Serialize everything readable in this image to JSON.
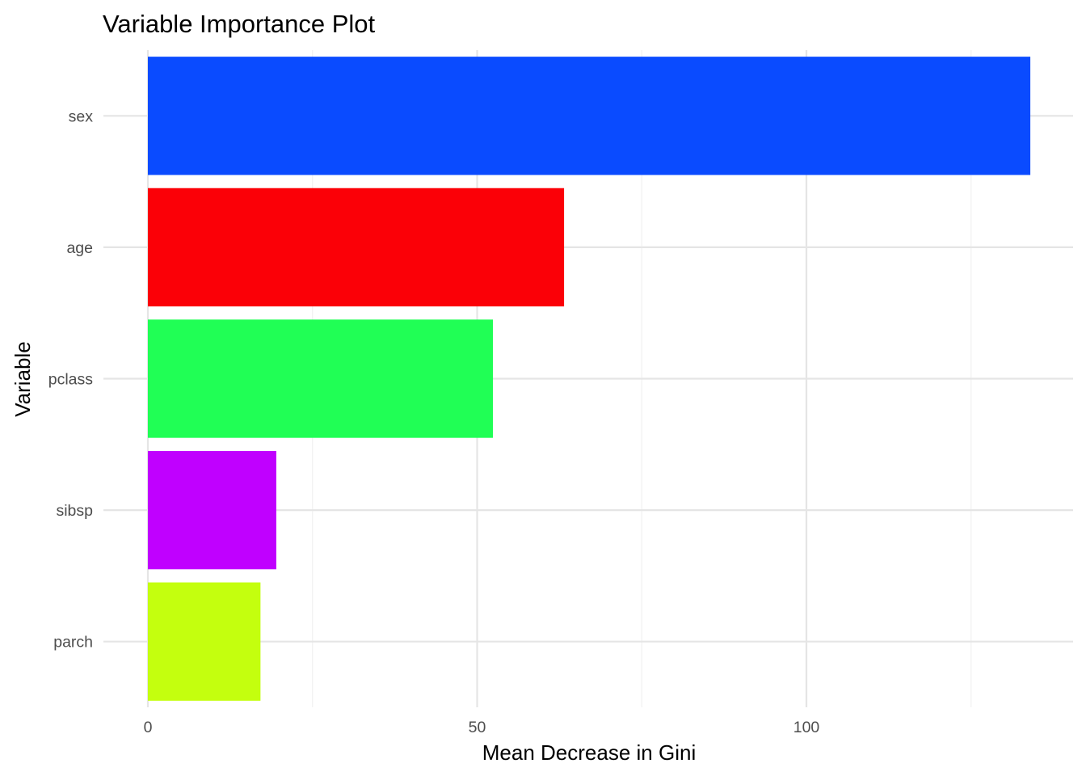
{
  "chart_data": {
    "type": "bar",
    "orientation": "horizontal",
    "title": "Variable Importance Plot",
    "xlabel": "Mean Decrease in Gini",
    "ylabel": "Variable",
    "categories": [
      "sex",
      "age",
      "pclass",
      "sibsp",
      "parch"
    ],
    "values": [
      134,
      63.2,
      52.4,
      19.5,
      17.1
    ],
    "colors": [
      "#0A4BFF",
      "#FB0007",
      "#20FF55",
      "#C000FF",
      "#C4FF0E"
    ],
    "xlim": [
      0,
      140
    ],
    "xticks": [
      0,
      50,
      100
    ],
    "x_minor_ticks": [
      25,
      75,
      125
    ],
    "grid": true,
    "legend": "none"
  }
}
